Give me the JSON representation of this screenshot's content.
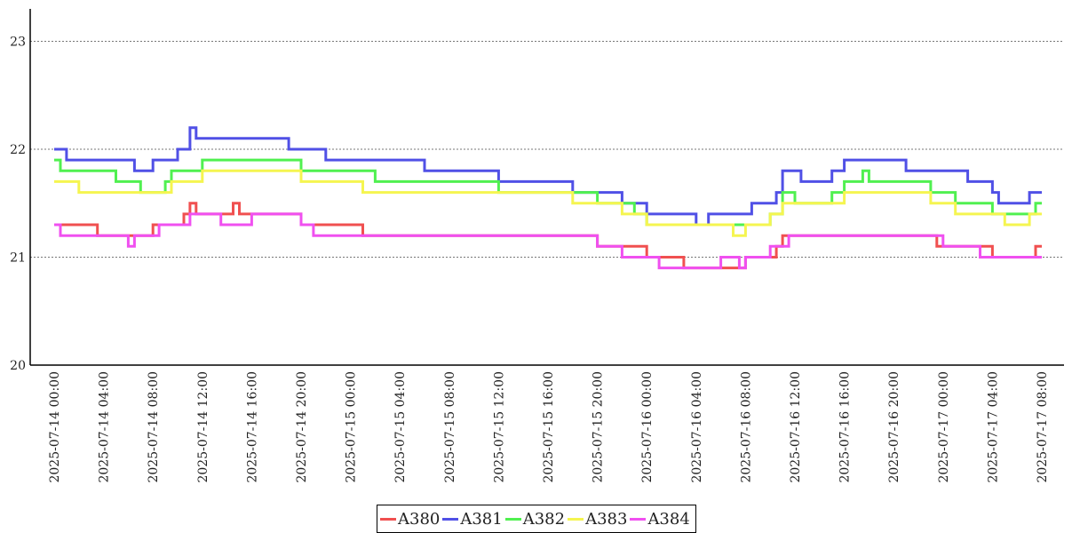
{
  "chart_data": {
    "type": "line",
    "title": "",
    "xlabel": "",
    "ylabel": "",
    "ylim": [
      20,
      23.3
    ],
    "y_ticks": [
      "20",
      "21",
      "22",
      "23"
    ],
    "x_ticks": [
      "2025-07-14 00:00",
      "2025-07-14 04:00",
      "2025-07-14 08:00",
      "2025-07-14 12:00",
      "2025-07-14 16:00",
      "2025-07-14 20:00",
      "2025-07-15 00:00",
      "2025-07-15 04:00",
      "2025-07-15 08:00",
      "2025-07-15 12:00",
      "2025-07-15 16:00",
      "2025-07-15 20:00",
      "2025-07-16 00:00",
      "2025-07-16 04:00",
      "2025-07-16 08:00",
      "2025-07-16 12:00",
      "2025-07-16 16:00",
      "2025-07-16 20:00",
      "2025-07-17 00:00",
      "2025-07-17 04:00",
      "2025-07-17 08:00"
    ],
    "grid": true,
    "legend_position": "bottom-center",
    "series": [
      {
        "name": "A380",
        "color": "#f05050",
        "points": [
          [
            "2025-07-14 00:00",
            21.3
          ],
          [
            "2025-07-14 03:30",
            21.2
          ],
          [
            "2025-07-14 08:00",
            21.3
          ],
          [
            "2025-07-14 10:30",
            21.4
          ],
          [
            "2025-07-14 11:00",
            21.5
          ],
          [
            "2025-07-14 11:30",
            21.4
          ],
          [
            "2025-07-14 14:30",
            21.5
          ],
          [
            "2025-07-14 15:00",
            21.4
          ],
          [
            "2025-07-14 20:00",
            21.3
          ],
          [
            "2025-07-15 01:00",
            21.2
          ],
          [
            "2025-07-15 20:00",
            21.1
          ],
          [
            "2025-07-16 00:00",
            21.0
          ],
          [
            "2025-07-16 03:00",
            20.9
          ],
          [
            "2025-07-16 08:00",
            21.0
          ],
          [
            "2025-07-16 10:30",
            21.1
          ],
          [
            "2025-07-16 11:00",
            21.2
          ],
          [
            "2025-07-16 20:00",
            21.2
          ],
          [
            "2025-07-16 23:30",
            21.1
          ],
          [
            "2025-07-17 04:00",
            21.0
          ],
          [
            "2025-07-17 07:30",
            21.1
          ],
          [
            "2025-07-17 08:00",
            21.1
          ]
        ]
      },
      {
        "name": "A381",
        "color": "#5050e6",
        "points": [
          [
            "2025-07-14 00:00",
            22.0
          ],
          [
            "2025-07-14 01:00",
            21.9
          ],
          [
            "2025-07-14 06:30",
            21.8
          ],
          [
            "2025-07-14 08:00",
            21.9
          ],
          [
            "2025-07-14 10:00",
            22.0
          ],
          [
            "2025-07-14 11:00",
            22.2
          ],
          [
            "2025-07-14 11:30",
            22.1
          ],
          [
            "2025-07-14 19:00",
            22.0
          ],
          [
            "2025-07-14 22:00",
            21.9
          ],
          [
            "2025-07-15 06:00",
            21.8
          ],
          [
            "2025-07-15 12:00",
            21.7
          ],
          [
            "2025-07-15 18:00",
            21.6
          ],
          [
            "2025-07-15 22:00",
            21.5
          ],
          [
            "2025-07-16 00:00",
            21.4
          ],
          [
            "2025-07-16 04:00",
            21.3
          ],
          [
            "2025-07-16 05:00",
            21.4
          ],
          [
            "2025-07-16 08:30",
            21.5
          ],
          [
            "2025-07-16 10:30",
            21.6
          ],
          [
            "2025-07-16 11:00",
            21.8
          ],
          [
            "2025-07-16 12:30",
            21.7
          ],
          [
            "2025-07-16 15:00",
            21.8
          ],
          [
            "2025-07-16 16:00",
            21.9
          ],
          [
            "2025-07-16 21:00",
            21.8
          ],
          [
            "2025-07-17 02:00",
            21.7
          ],
          [
            "2025-07-17 04:00",
            21.6
          ],
          [
            "2025-07-17 04:30",
            21.5
          ],
          [
            "2025-07-17 06:00",
            21.5
          ],
          [
            "2025-07-17 07:00",
            21.6
          ],
          [
            "2025-07-17 08:00",
            21.6
          ]
        ]
      },
      {
        "name": "A382",
        "color": "#50f050",
        "points": [
          [
            "2025-07-14 00:00",
            21.9
          ],
          [
            "2025-07-14 00:30",
            21.8
          ],
          [
            "2025-07-14 05:00",
            21.7
          ],
          [
            "2025-07-14 07:00",
            21.6
          ],
          [
            "2025-07-14 09:00",
            21.7
          ],
          [
            "2025-07-14 09:30",
            21.8
          ],
          [
            "2025-07-14 12:00",
            21.9
          ],
          [
            "2025-07-14 16:00",
            21.9
          ],
          [
            "2025-07-14 20:00",
            21.8
          ],
          [
            "2025-07-15 02:00",
            21.7
          ],
          [
            "2025-07-15 06:00",
            21.7
          ],
          [
            "2025-07-15 12:00",
            21.6
          ],
          [
            "2025-07-15 20:00",
            21.5
          ],
          [
            "2025-07-15 23:00",
            21.4
          ],
          [
            "2025-07-16 00:00",
            21.3
          ],
          [
            "2025-07-16 10:00",
            21.4
          ],
          [
            "2025-07-16 11:00",
            21.6
          ],
          [
            "2025-07-16 12:00",
            21.5
          ],
          [
            "2025-07-16 15:00",
            21.6
          ],
          [
            "2025-07-16 16:00",
            21.7
          ],
          [
            "2025-07-16 17:30",
            21.8
          ],
          [
            "2025-07-16 18:00",
            21.7
          ],
          [
            "2025-07-16 23:00",
            21.6
          ],
          [
            "2025-07-17 01:00",
            21.5
          ],
          [
            "2025-07-17 04:00",
            21.4
          ],
          [
            "2025-07-17 07:30",
            21.5
          ],
          [
            "2025-07-17 08:00",
            21.5
          ]
        ]
      },
      {
        "name": "A383",
        "color": "#f5f550",
        "points": [
          [
            "2025-07-14 00:00",
            21.7
          ],
          [
            "2025-07-14 01:30",
            21.7
          ],
          [
            "2025-07-14 02:00",
            21.6
          ],
          [
            "2025-07-14 07:30",
            21.6
          ],
          [
            "2025-07-14 09:30",
            21.7
          ],
          [
            "2025-07-14 10:00",
            21.7
          ],
          [
            "2025-07-14 12:00",
            21.8
          ],
          [
            "2025-07-14 20:00",
            21.7
          ],
          [
            "2025-07-15 01:00",
            21.6
          ],
          [
            "2025-07-15 18:00",
            21.5
          ],
          [
            "2025-07-15 22:00",
            21.4
          ],
          [
            "2025-07-16 00:00",
            21.3
          ],
          [
            "2025-07-16 07:00",
            21.2
          ],
          [
            "2025-07-16 08:00",
            21.3
          ],
          [
            "2025-07-16 10:00",
            21.4
          ],
          [
            "2025-07-16 11:00",
            21.5
          ],
          [
            "2025-07-16 16:00",
            21.6
          ],
          [
            "2025-07-16 18:00",
            21.6
          ],
          [
            "2025-07-16 23:00",
            21.5
          ],
          [
            "2025-07-17 01:00",
            21.4
          ],
          [
            "2025-07-17 05:00",
            21.3
          ],
          [
            "2025-07-17 07:00",
            21.4
          ],
          [
            "2025-07-17 08:00",
            21.4
          ]
        ]
      },
      {
        "name": "A384",
        "color": "#f050f0",
        "points": [
          [
            "2025-07-14 00:00",
            21.3
          ],
          [
            "2025-07-14 00:30",
            21.2
          ],
          [
            "2025-07-14 06:00",
            21.1
          ],
          [
            "2025-07-14 06:30",
            21.2
          ],
          [
            "2025-07-14 08:30",
            21.3
          ],
          [
            "2025-07-14 10:30",
            21.3
          ],
          [
            "2025-07-14 11:00",
            21.4
          ],
          [
            "2025-07-14 13:30",
            21.3
          ],
          [
            "2025-07-14 16:00",
            21.4
          ],
          [
            "2025-07-14 20:00",
            21.3
          ],
          [
            "2025-07-14 21:00",
            21.2
          ],
          [
            "2025-07-15 20:00",
            21.1
          ],
          [
            "2025-07-15 22:00",
            21.0
          ],
          [
            "2025-07-16 01:00",
            20.9
          ],
          [
            "2025-07-16 06:00",
            21.0
          ],
          [
            "2025-07-16 07:30",
            20.9
          ],
          [
            "2025-07-16 08:00",
            21.0
          ],
          [
            "2025-07-16 10:00",
            21.1
          ],
          [
            "2025-07-16 11:30",
            21.2
          ],
          [
            "2025-07-16 21:00",
            21.2
          ],
          [
            "2025-07-17 00:00",
            21.1
          ],
          [
            "2025-07-17 03:00",
            21.0
          ],
          [
            "2025-07-17 08:00",
            21.0
          ]
        ]
      }
    ]
  }
}
